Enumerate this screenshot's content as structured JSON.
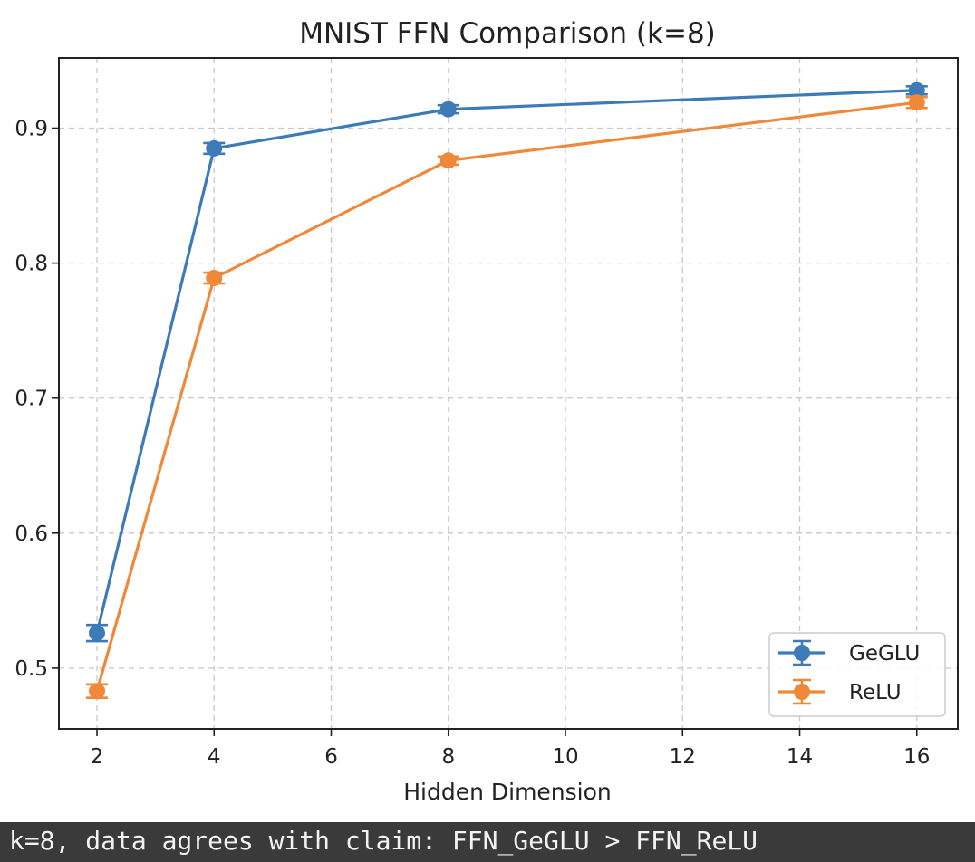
{
  "chart_data": {
    "type": "line",
    "title": "MNIST FFN Comparison (k=8)",
    "xlabel": "Hidden Dimension",
    "ylabel": "",
    "xlim": [
      1.35,
      16.7
    ],
    "ylim": [
      0.455,
      0.952
    ],
    "xticks": [
      2,
      4,
      6,
      8,
      10,
      12,
      14,
      16
    ],
    "yticks": [
      0.5,
      0.6,
      0.7,
      0.8,
      0.9
    ],
    "ytick_labels": [
      "0.5",
      "0.6",
      "0.7",
      "0.8",
      "0.9"
    ],
    "grid": true,
    "grid_style": "dashed",
    "legend_position": "lower-right",
    "x": [
      2,
      4,
      8,
      16
    ],
    "series": [
      {
        "name": "GeGLU",
        "color": "#3d7ab8",
        "values": [
          0.526,
          0.885,
          0.914,
          0.928
        ],
        "errors": [
          0.006,
          0.004,
          0.003,
          0.003
        ]
      },
      {
        "name": "ReLU",
        "color": "#f0883a",
        "values": [
          0.483,
          0.789,
          0.876,
          0.919
        ],
        "errors": [
          0.005,
          0.004,
          0.003,
          0.004
        ]
      }
    ]
  },
  "caption": {
    "text": "k=8, data agrees with claim: FFN_GeGLU > FFN_ReLU",
    "background": "#3a3a3a"
  }
}
